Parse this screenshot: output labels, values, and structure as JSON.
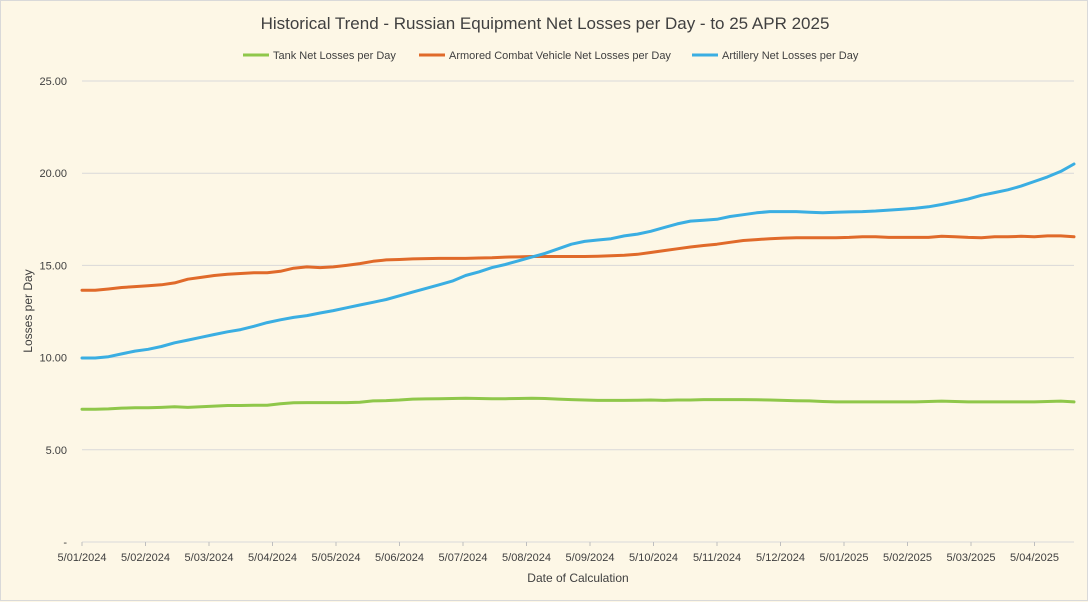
{
  "chart_data": {
    "type": "line",
    "title": "Historical Trend - Russian Equipment Net Losses per Day - to 25 APR 2025",
    "xlabel": "Date of Calculation",
    "ylabel": "Losses per Day",
    "ylim": [
      0,
      25
    ],
    "yticks": [
      "-",
      "5.00",
      "10.00",
      "15.00",
      "20.00",
      "25.00"
    ],
    "ytick_values": [
      0,
      5,
      10,
      15,
      20,
      25
    ],
    "xticks": [
      "5/01/2024",
      "5/02/2024",
      "5/03/2024",
      "5/04/2024",
      "5/05/2024",
      "5/06/2024",
      "5/07/2024",
      "5/08/2024",
      "5/09/2024",
      "5/10/2024",
      "5/11/2024",
      "5/12/2024",
      "5/01/2025",
      "5/02/2025",
      "5/03/2025",
      "5/04/2025"
    ],
    "legend_position": "top",
    "grid": "horizontal",
    "series": [
      {
        "name": "Tank Net Losses per Day",
        "color": "#8fc74a",
        "values": [
          7.2,
          7.2,
          7.22,
          7.26,
          7.28,
          7.28,
          7.3,
          7.33,
          7.3,
          7.33,
          7.37,
          7.4,
          7.4,
          7.42,
          7.42,
          7.5,
          7.55,
          7.56,
          7.56,
          7.56,
          7.56,
          7.58,
          7.65,
          7.67,
          7.7,
          7.75,
          7.76,
          7.77,
          7.78,
          7.8,
          7.78,
          7.77,
          7.77,
          7.78,
          7.8,
          7.78,
          7.75,
          7.72,
          7.7,
          7.68,
          7.68,
          7.68,
          7.69,
          7.7,
          7.68,
          7.7,
          7.7,
          7.72,
          7.72,
          7.72,
          7.72,
          7.71,
          7.7,
          7.68,
          7.66,
          7.65,
          7.62,
          7.6,
          7.6,
          7.6,
          7.6,
          7.6,
          7.6,
          7.6,
          7.62,
          7.64,
          7.62,
          7.6,
          7.6,
          7.6,
          7.6,
          7.6,
          7.6,
          7.62,
          7.64,
          7.6
        ]
      },
      {
        "name": "Armored Combat Vehicle Net Losses per Day",
        "color": "#e06a2a",
        "values": [
          13.65,
          13.65,
          13.72,
          13.8,
          13.85,
          13.9,
          13.95,
          14.05,
          14.25,
          14.35,
          14.45,
          14.52,
          14.56,
          14.6,
          14.6,
          14.68,
          14.85,
          14.92,
          14.88,
          14.92,
          15.0,
          15.1,
          15.22,
          15.3,
          15.32,
          15.35,
          15.37,
          15.38,
          15.38,
          15.38,
          15.4,
          15.42,
          15.45,
          15.46,
          15.48,
          15.48,
          15.48,
          15.48,
          15.48,
          15.5,
          15.52,
          15.55,
          15.6,
          15.7,
          15.8,
          15.9,
          16.0,
          16.08,
          16.15,
          16.25,
          16.35,
          16.4,
          16.45,
          16.48,
          16.5,
          16.5,
          16.5,
          16.5,
          16.52,
          16.55,
          16.55,
          16.52,
          16.52,
          16.52,
          16.52,
          16.58,
          16.55,
          16.52,
          16.5,
          16.55,
          16.55,
          16.58,
          16.55,
          16.6,
          16.6,
          16.55
        ]
      },
      {
        "name": "Artillery Net Losses per Day",
        "color": "#3aaee2",
        "values": [
          9.98,
          9.98,
          10.05,
          10.2,
          10.35,
          10.45,
          10.6,
          10.8,
          10.95,
          11.1,
          11.25,
          11.4,
          11.52,
          11.7,
          11.9,
          12.05,
          12.18,
          12.28,
          12.42,
          12.55,
          12.7,
          12.85,
          13.0,
          13.15,
          13.35,
          13.55,
          13.75,
          13.95,
          14.15,
          14.45,
          14.65,
          14.88,
          15.05,
          15.25,
          15.45,
          15.65,
          15.9,
          16.15,
          16.3,
          16.38,
          16.45,
          16.6,
          16.7,
          16.85,
          17.05,
          17.25,
          17.4,
          17.45,
          17.5,
          17.65,
          17.75,
          17.85,
          17.92,
          17.92,
          17.92,
          17.88,
          17.85,
          17.88,
          17.9,
          17.92,
          17.95,
          18.0,
          18.05,
          18.1,
          18.18,
          18.3,
          18.45,
          18.6,
          18.8,
          18.95,
          19.1,
          19.3,
          19.55,
          19.8,
          20.1,
          20.5
        ]
      }
    ]
  }
}
